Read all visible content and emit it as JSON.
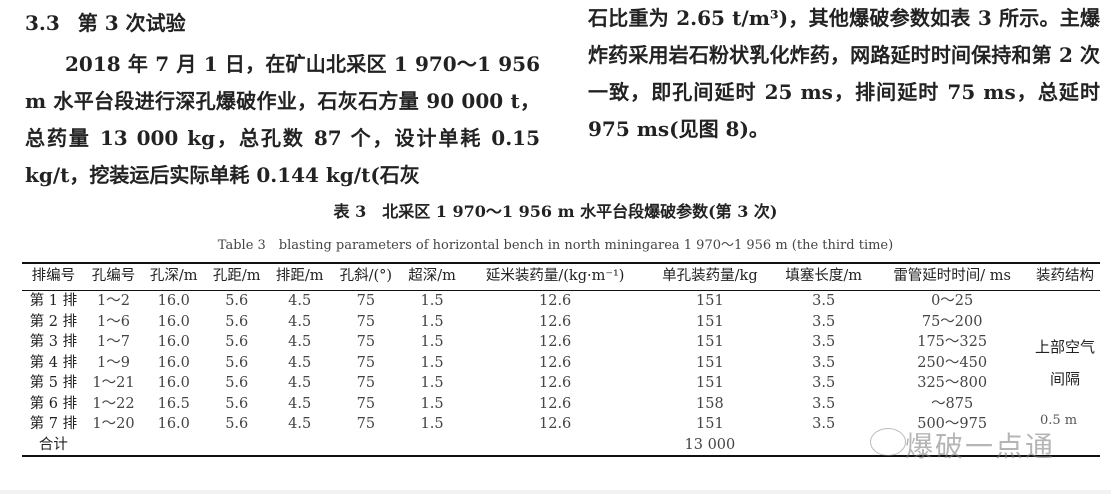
{
  "section": {
    "number": "3.3",
    "title": "第 3 次试验"
  },
  "left_paragraph": "2018 年 7 月 1 日，在矿山北采区 1 970～1 956 m 水平台段进行深孔爆破作业，石灰石方量 90 000 t，总药量 13 000 kg，总孔数 87 个，设计单耗 0.15 kg/t，挖装运后实际单耗 0.144 kg/t(石灰",
  "right_paragraph": "石比重为 2.65 t/m³)，其他爆破参数如表 3 所示。主爆炸药采用岩石粉状乳化炸药，网路延时时间保持和第 2 次一致，即孔间延时 25 ms，排间延时 75 ms，总延时 975 ms(见图 8)。",
  "table": {
    "caption_cn": "表 3　北采区 1 970～1 956 m 水平台段爆破参数(第 3 次)",
    "caption_en": "Table 3　blasting parameters of horizontal bench in north miningarea 1 970～1 956 m (the third time)",
    "headers": [
      "排编号",
      "孔编号",
      "孔深/m",
      "孔距/m",
      "排距/m",
      "孔斜/(°)",
      "超深/m",
      "延米装药量/(kg·m⁻¹)",
      "单孔装药量/kg",
      "填塞长度/m",
      "雷管延时时间/ ms",
      "装药结构"
    ],
    "rows": [
      [
        "第 1 排",
        "1～2",
        "16.0",
        "5.6",
        "4.5",
        "75",
        "1.5",
        "12.6",
        "151",
        "3.5",
        "0～25"
      ],
      [
        "第 2 排",
        "1～6",
        "16.0",
        "5.6",
        "4.5",
        "75",
        "1.5",
        "12.6",
        "151",
        "3.5",
        "75～200"
      ],
      [
        "第 3 排",
        "1～7",
        "16.0",
        "5.6",
        "4.5",
        "75",
        "1.5",
        "12.6",
        "151",
        "3.5",
        "175～325"
      ],
      [
        "第 4 排",
        "1～9",
        "16.0",
        "5.6",
        "4.5",
        "75",
        "1.5",
        "12.6",
        "151",
        "3.5",
        "250～450"
      ],
      [
        "第 5 排",
        "1～21",
        "16.0",
        "5.6",
        "4.5",
        "75",
        "1.5",
        "12.6",
        "151",
        "3.5",
        "325～800"
      ],
      [
        "第 6 排",
        "1～22",
        "16.5",
        "5.6",
        "4.5",
        "75",
        "1.5",
        "12.6",
        "158",
        "3.5",
        "～875"
      ],
      [
        "第 7 排",
        "1～20",
        "16.0",
        "5.6",
        "4.5",
        "75",
        "1.5",
        "12.6",
        "151",
        "3.5",
        "500～975"
      ]
    ],
    "structure": "上部空气间隔",
    "structure_note": "0.5 m",
    "total_label": "合计",
    "total_charge": "13 000"
  },
  "watermark": "爆破一点通"
}
